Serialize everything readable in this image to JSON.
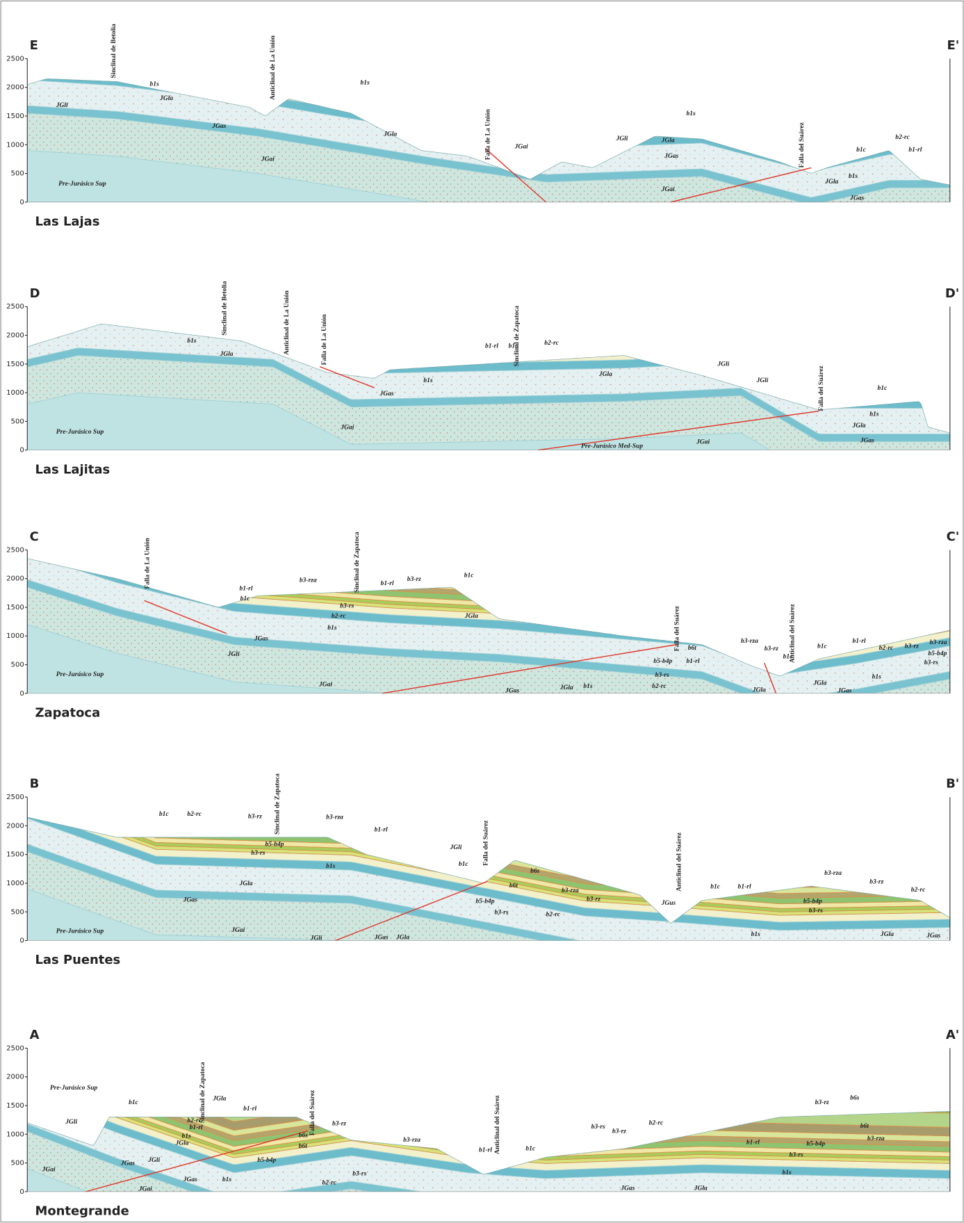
{
  "sections": [
    {
      "name": "Las Lajas",
      "start": "E",
      "end": "E'",
      "yticks": [
        0,
        500,
        1000,
        1500,
        2000,
        2500
      ],
      "structures": [
        "Sinclinal de Betolia",
        "Anticlinal de La Unión",
        "Falla de La Unión",
        "Falla del Suárez"
      ],
      "labels": [
        "b1s",
        "b1s",
        "JGla",
        "JGli",
        "JGas",
        "JGla",
        "JGai",
        "Pre-Jurásico Sup",
        "JGai",
        "JGli",
        "JGla",
        "b1s",
        "JGas",
        "JGai",
        "b1c",
        "b2-rc",
        "b1-rl",
        "b1s",
        "JGla",
        "JGas"
      ]
    },
    {
      "name": "Las Lajitas",
      "start": "D",
      "end": "D'",
      "yticks": [
        0,
        500,
        1000,
        1500,
        2000,
        2500
      ],
      "structures": [
        "Sinclinal de Betolia",
        "Anticlinal de La Unión",
        "Falla de La Unión",
        "Sinclinal de Zapatoca",
        "Falla del Suárez"
      ],
      "labels": [
        "b1s",
        "JGla",
        "b1-rl",
        "b1c",
        "b2-rc",
        "b1s",
        "JGla",
        "JGli",
        "JGli",
        "JGas",
        "b1c",
        "b1s",
        "JGla",
        "JGas",
        "JGai",
        "Pre-Jurásico Sup",
        "Pre-Jurásico Med-Sup",
        "JGai"
      ]
    },
    {
      "name": "Zapatoca",
      "start": "C",
      "end": "C'",
      "yticks": [
        0,
        500,
        1000,
        1500,
        2000,
        2500
      ],
      "structures": [
        "Falla de La Unión",
        "Sinclinal de Zapatoca",
        "Falla del Suárez",
        "Anticlinal del Suárez"
      ],
      "labels": [
        "b1-rl",
        "b1c",
        "b3-rza",
        "b1-rl",
        "b3-rz",
        "b1c",
        "b3-rs",
        "b2-rc",
        "b1s",
        "JGla",
        "JGas",
        "JGli",
        "Pre-Jurásico Sup",
        "JGai",
        "JGas",
        "JGla",
        "b1s",
        "b6t",
        "b3-rza",
        "b3-rz",
        "b1c",
        "b1-rl",
        "b5-b4p",
        "b3-rs",
        "b2-rc",
        "JGla",
        "b1c",
        "b1-rl",
        "b2-rc",
        "b3-rz",
        "b3-rza",
        "b5-b4p",
        "b3-rs",
        "JGla",
        "b1s",
        "JGas"
      ]
    },
    {
      "name": "Las Puentes",
      "start": "B",
      "end": "B'",
      "yticks": [
        0,
        500,
        1000,
        1500,
        2000,
        2500
      ],
      "structures": [
        "Sinclinal de Zapatoca",
        "Falla del Suárez",
        "Anticlinal del Suárez"
      ],
      "labels": [
        "b1c",
        "b2-rc",
        "b3-rz",
        "b3-rza",
        "b1-rl",
        "b5-b4p",
        "b3-rs",
        "b1s",
        "JGla",
        "JGli",
        "b1c",
        "b6s",
        "b6t",
        "b3-rza",
        "b3-rz",
        "b5-b4p",
        "b3-rs",
        "b2-rc",
        "JGas",
        "JGus",
        "b1c",
        "b1-rl",
        "b3-rza",
        "b5-b4p",
        "b3-rs",
        "b3-rz",
        "b2-rc",
        "b1s",
        "JGla",
        "JGas",
        "JGai",
        "Pre-Jurásico Sup",
        "JGli",
        "JGas",
        "JGla"
      ]
    },
    {
      "name": "Montegrande",
      "start": "A",
      "end": "A'",
      "yticks": [
        0,
        500,
        1000,
        1500,
        2000,
        2500
      ],
      "structures": [
        "Sinclinal de Zapatoca",
        "Falla del Suárez",
        "Anticlinal del Suárez"
      ],
      "labels": [
        "Pre-Jurásico Sup",
        "JGli",
        "b1c",
        "b2-rc",
        "b1-rl",
        "b1s",
        "JGla",
        "JGla",
        "b1-rl",
        "b6s",
        "b3-rz",
        "b6t",
        "b5-b4p",
        "b3-rs",
        "b2-rc",
        "b3-rza",
        "JGas",
        "JGli",
        "JGas",
        "b1s",
        "JGai",
        "JGai",
        "b1-rl",
        "b1c",
        "b3-rs",
        "b3-rz",
        "b2-rc",
        "b3-rz",
        "b6s",
        "b6t",
        "b3-rza",
        "b1-rl",
        "b5-b4p",
        "b3-rs",
        "b1s",
        "JGas",
        "JGla"
      ]
    }
  ]
}
